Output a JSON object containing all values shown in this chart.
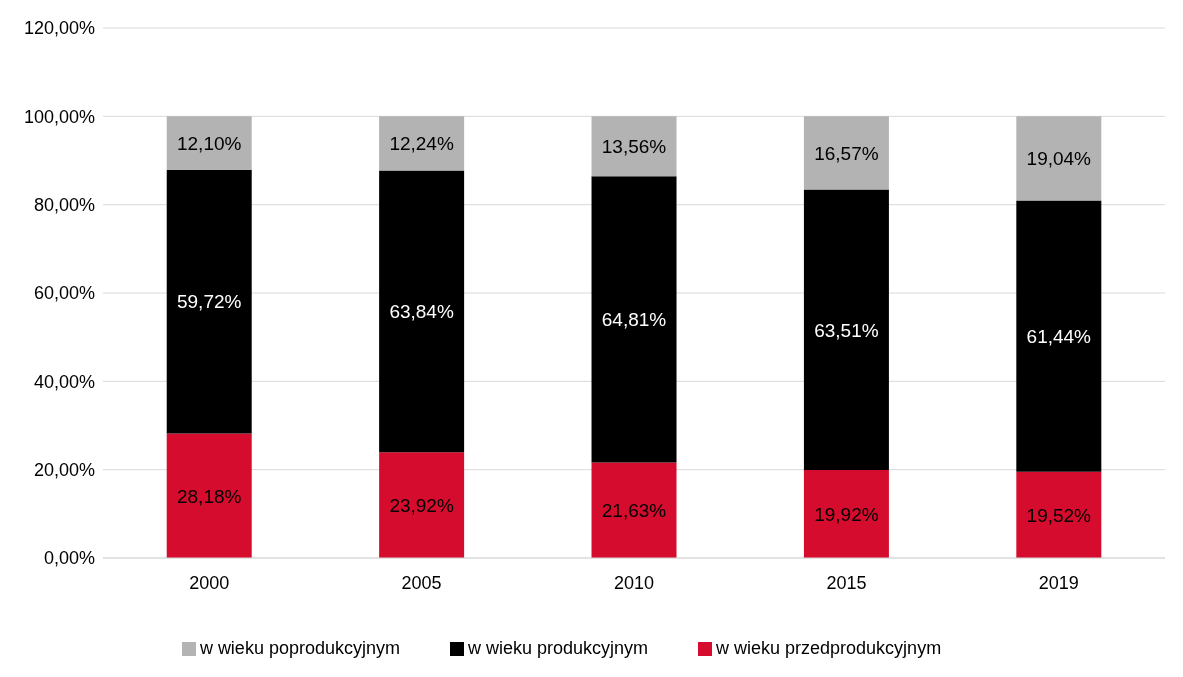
{
  "chart_data": {
    "type": "bar",
    "stacked": true,
    "categories": [
      "2000",
      "2005",
      "2010",
      "2015",
      "2019"
    ],
    "series": [
      {
        "name": "w wieku przedprodukcyjnym",
        "color": "#d50c2d",
        "values": [
          28.18,
          23.92,
          21.63,
          19.92,
          19.52
        ],
        "value_labels": [
          "28,18%",
          "23,92%",
          "21,63%",
          "19,92%",
          "19,52%"
        ]
      },
      {
        "name": "w wieku produkcyjnym",
        "color": "#000000",
        "values": [
          59.72,
          63.84,
          64.81,
          63.51,
          61.44
        ],
        "value_labels": [
          "59,72%",
          "63,84%",
          "64,81%",
          "63,51%",
          "61,44%"
        ]
      },
      {
        "name": "w wieku poprodukcyjnym",
        "color": "#b3b3b3",
        "values": [
          12.1,
          12.24,
          13.56,
          16.57,
          19.04
        ],
        "value_labels": [
          "12,10%",
          "12,24%",
          "13,56%",
          "16,57%",
          "19,04%"
        ]
      }
    ],
    "ylim": [
      0,
      120
    ],
    "yticks": [
      {
        "value": 0,
        "label": "0,00%"
      },
      {
        "value": 20,
        "label": "20,00%"
      },
      {
        "value": 40,
        "label": "40,00%"
      },
      {
        "value": 60,
        "label": "60,00%"
      },
      {
        "value": 80,
        "label": "80,00%"
      },
      {
        "value": 100,
        "label": "100,00%"
      },
      {
        "value": 120,
        "label": "120,00%"
      }
    ],
    "grid": "y",
    "legend": "bottom"
  }
}
